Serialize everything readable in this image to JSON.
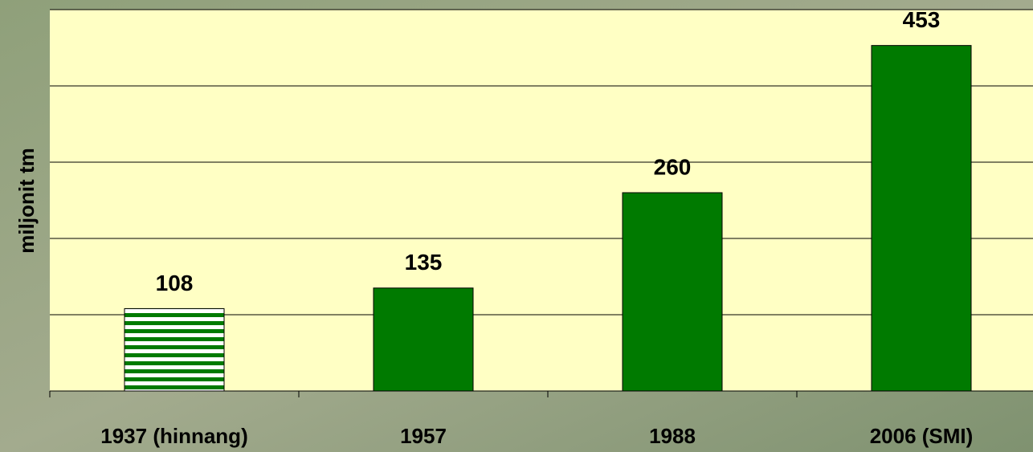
{
  "chart_data": {
    "type": "bar",
    "y_label": "miljonit tm",
    "categories": [
      "1937 (hinnang)",
      "1957",
      "1988",
      "2006 (SMI)"
    ],
    "values": [
      108,
      135,
      260,
      453
    ],
    "color": "#007a00",
    "hatched": [
      true,
      false,
      false,
      false
    ],
    "ylim": [
      0,
      500
    ],
    "yticks": [
      0,
      100,
      200,
      300,
      400,
      500
    ],
    "grid": true
  }
}
